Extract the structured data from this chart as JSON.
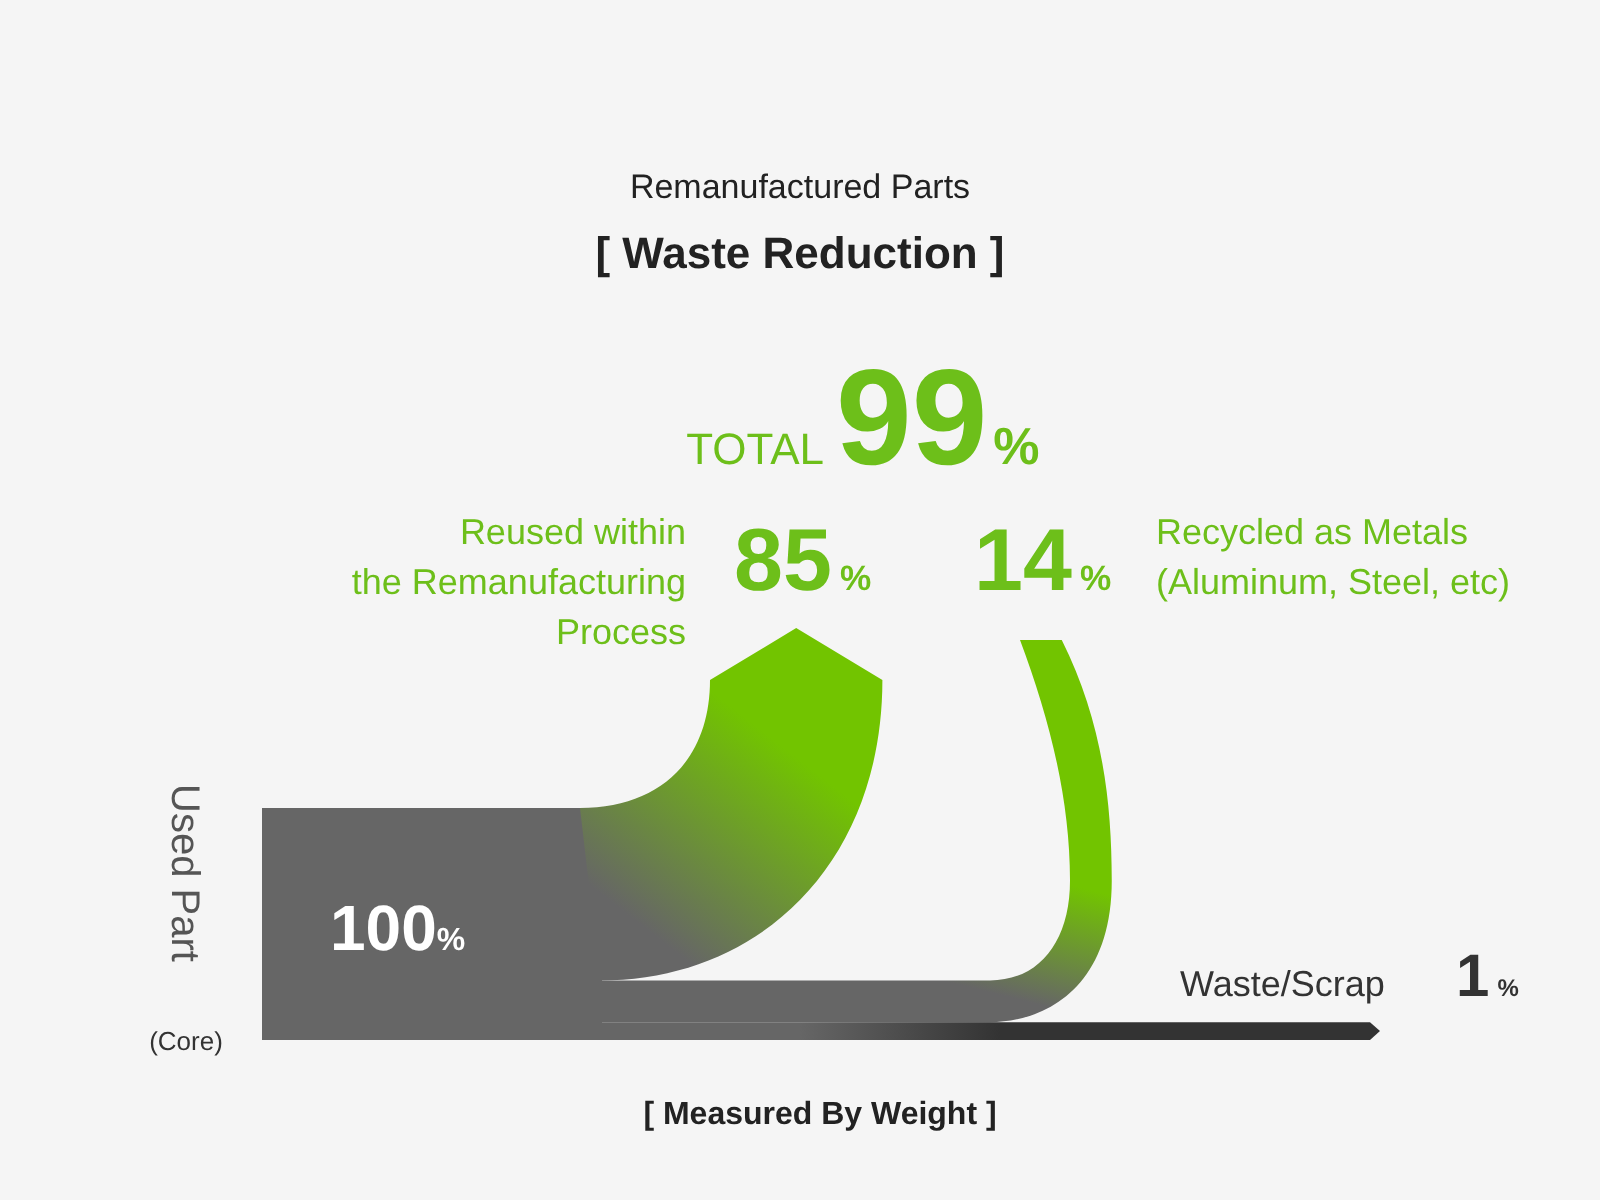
{
  "chart_data": {
    "type": "other",
    "title": "Remanufactured Parts",
    "subtitle": "[ Waste Reduction ]",
    "categories": [
      "Reused within\nthe Remanufacturing\nProcess",
      "Recycled as Metals\n(Aluminum, Steel, etc)",
      "Waste/Scrap"
    ],
    "values": [
      85,
      14,
      1
    ],
    "value_labels": [
      "85%",
      "14%",
      "1%"
    ],
    "colors": [
      "#72c400",
      "#72c400",
      "#333333"
    ],
    "annotations": [
      "Used Part",
      "(Core)",
      "100%",
      "TOTAL",
      "99%",
      "[ Measured By Weight ]"
    ]
  }
}
